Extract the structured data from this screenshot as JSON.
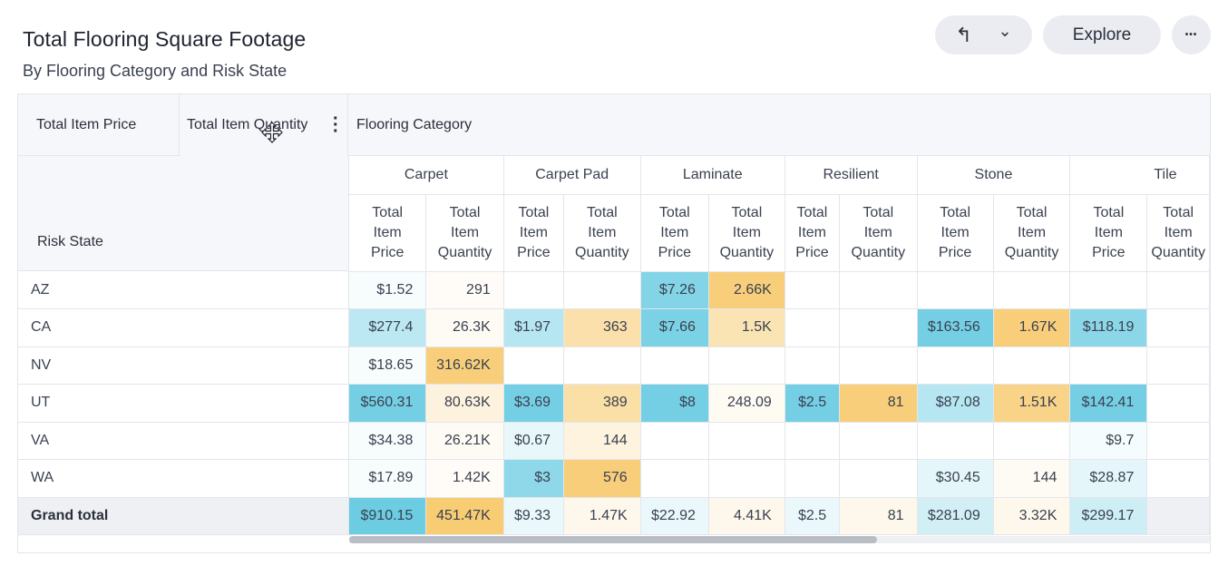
{
  "header": {
    "title": "Total Flooring Square Footage",
    "subtitle": "By Flooring Category and Risk State",
    "undo_icon": "↰",
    "chevron_icon": "⌄",
    "explore_label": "Explore",
    "more_icon": "•••"
  },
  "pivot": {
    "value_chip_1": "Total Item Price",
    "value_chip_2": "Total Item Quantity",
    "column_field": "Flooring Category",
    "row_field": "Risk State",
    "categories": [
      "Carpet",
      "Carpet Pad",
      "Laminate",
      "Resilient",
      "Stone",
      "Tile"
    ],
    "measure_price": [
      "Total",
      "Item",
      "Price"
    ],
    "measure_qty": [
      "Total",
      "Item",
      "Quantity"
    ],
    "rows": [
      {
        "state": "AZ",
        "cells": [
          "$1.52",
          "291",
          "",
          "",
          "$7.26",
          "2.66K",
          "",
          "",
          "",
          "",
          "",
          ""
        ]
      },
      {
        "state": "CA",
        "cells": [
          "$277.4",
          "26.3K",
          "$1.97",
          "363",
          "$7.66",
          "1.5K",
          "",
          "",
          "$163.56",
          "1.67K",
          "$118.19",
          ""
        ]
      },
      {
        "state": "NV",
        "cells": [
          "$18.65",
          "316.62K",
          "",
          "",
          "",
          "",
          "",
          "",
          "",
          "",
          "",
          ""
        ]
      },
      {
        "state": "UT",
        "cells": [
          "$560.31",
          "80.63K",
          "$3.69",
          "389",
          "$8",
          "248.09",
          "$2.5",
          "81",
          "$87.08",
          "1.51K",
          "$142.41",
          ""
        ]
      },
      {
        "state": "VA",
        "cells": [
          "$34.38",
          "26.21K",
          "$0.67",
          "144",
          "",
          "",
          "",
          "",
          "",
          "",
          "$9.7",
          ""
        ]
      },
      {
        "state": "WA",
        "cells": [
          "$17.89",
          "1.42K",
          "$3",
          "576",
          "",
          "",
          "",
          "",
          "$30.45",
          "144",
          "$28.87",
          ""
        ]
      }
    ],
    "grand_total": {
      "label": "Grand total",
      "cells": [
        "$910.15",
        "451.47K",
        "$9.33",
        "1.47K",
        "$22.92",
        "4.41K",
        "$2.5",
        "81",
        "$281.09",
        "3.32K",
        "$299.17",
        ""
      ]
    }
  },
  "colors": {
    "price_heat": "#5cc7df",
    "qty_heat": "#f7c663",
    "band": "#f6f7fa"
  }
}
